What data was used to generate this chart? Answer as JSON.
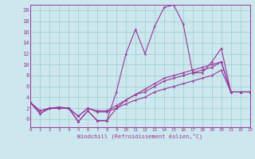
{
  "xlabel": "Windchill (Refroidissement éolien,°C)",
  "bg_color": "#cce8ee",
  "line_color": "#993399",
  "grid_color": "#99cccc",
  "xlim": [
    0,
    23
  ],
  "ylim": [
    -1.5,
    21
  ],
  "xtick_labels": [
    "0",
    "1",
    "2",
    "3",
    "4",
    "5",
    "6",
    "7",
    "8",
    "9",
    "10",
    "11",
    "12",
    "13",
    "14",
    "15",
    "16",
    "17",
    "18",
    "19",
    "20",
    "21",
    "22",
    "23"
  ],
  "ytick_vals": [
    0,
    2,
    4,
    6,
    8,
    10,
    12,
    14,
    16,
    18,
    20
  ],
  "curve1_y": [
    3.0,
    1.0,
    2.0,
    2.0,
    2.0,
    -0.5,
    1.5,
    -0.3,
    -0.3,
    5.0,
    12.0,
    16.5,
    12.0,
    17.0,
    20.5,
    21.0,
    17.5,
    8.5,
    8.5,
    10.5,
    13.0,
    5.0,
    5.0,
    5.0
  ],
  "curve2_y": [
    3.0,
    1.0,
    2.0,
    2.0,
    2.0,
    -0.5,
    1.5,
    -0.3,
    -0.3,
    2.0,
    3.5,
    4.5,
    5.5,
    6.5,
    7.5,
    8.0,
    8.5,
    9.0,
    9.5,
    10.0,
    10.5,
    5.0,
    5.0,
    5.0
  ],
  "curve3_y": [
    3.0,
    1.5,
    2.0,
    2.2,
    2.0,
    0.5,
    2.0,
    1.5,
    1.5,
    2.5,
    3.5,
    4.5,
    5.0,
    6.0,
    7.0,
    7.5,
    8.0,
    8.5,
    9.0,
    9.5,
    10.5,
    5.0,
    5.0,
    5.0
  ],
  "curve4_y": [
    3.0,
    1.5,
    2.0,
    2.0,
    2.0,
    0.5,
    2.0,
    1.3,
    1.3,
    2.0,
    2.8,
    3.5,
    4.0,
    5.0,
    5.5,
    6.0,
    6.5,
    7.0,
    7.5,
    8.0,
    9.0,
    5.0,
    5.0,
    5.0
  ]
}
